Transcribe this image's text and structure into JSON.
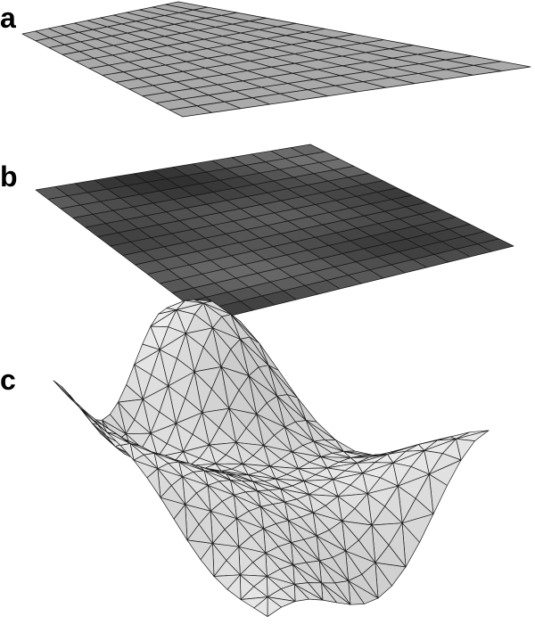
{
  "panels": [
    {
      "label": "a",
      "mesh": "flat-quad-grid",
      "fill": "#aaaaaa",
      "grid": [
        12,
        12
      ]
    },
    {
      "label": "b",
      "mesh": "flat-quad-grid-shaded",
      "fill": "#4a4a4a",
      "grid": [
        14,
        14
      ]
    },
    {
      "label": "c",
      "mesh": "deformed-triangle-mesh",
      "fill": "#e4e4e4",
      "grid": [
        16,
        16
      ]
    }
  ],
  "colors": {
    "background": "#ffffff",
    "edge": "#1a1a1a",
    "label": "#000000"
  }
}
